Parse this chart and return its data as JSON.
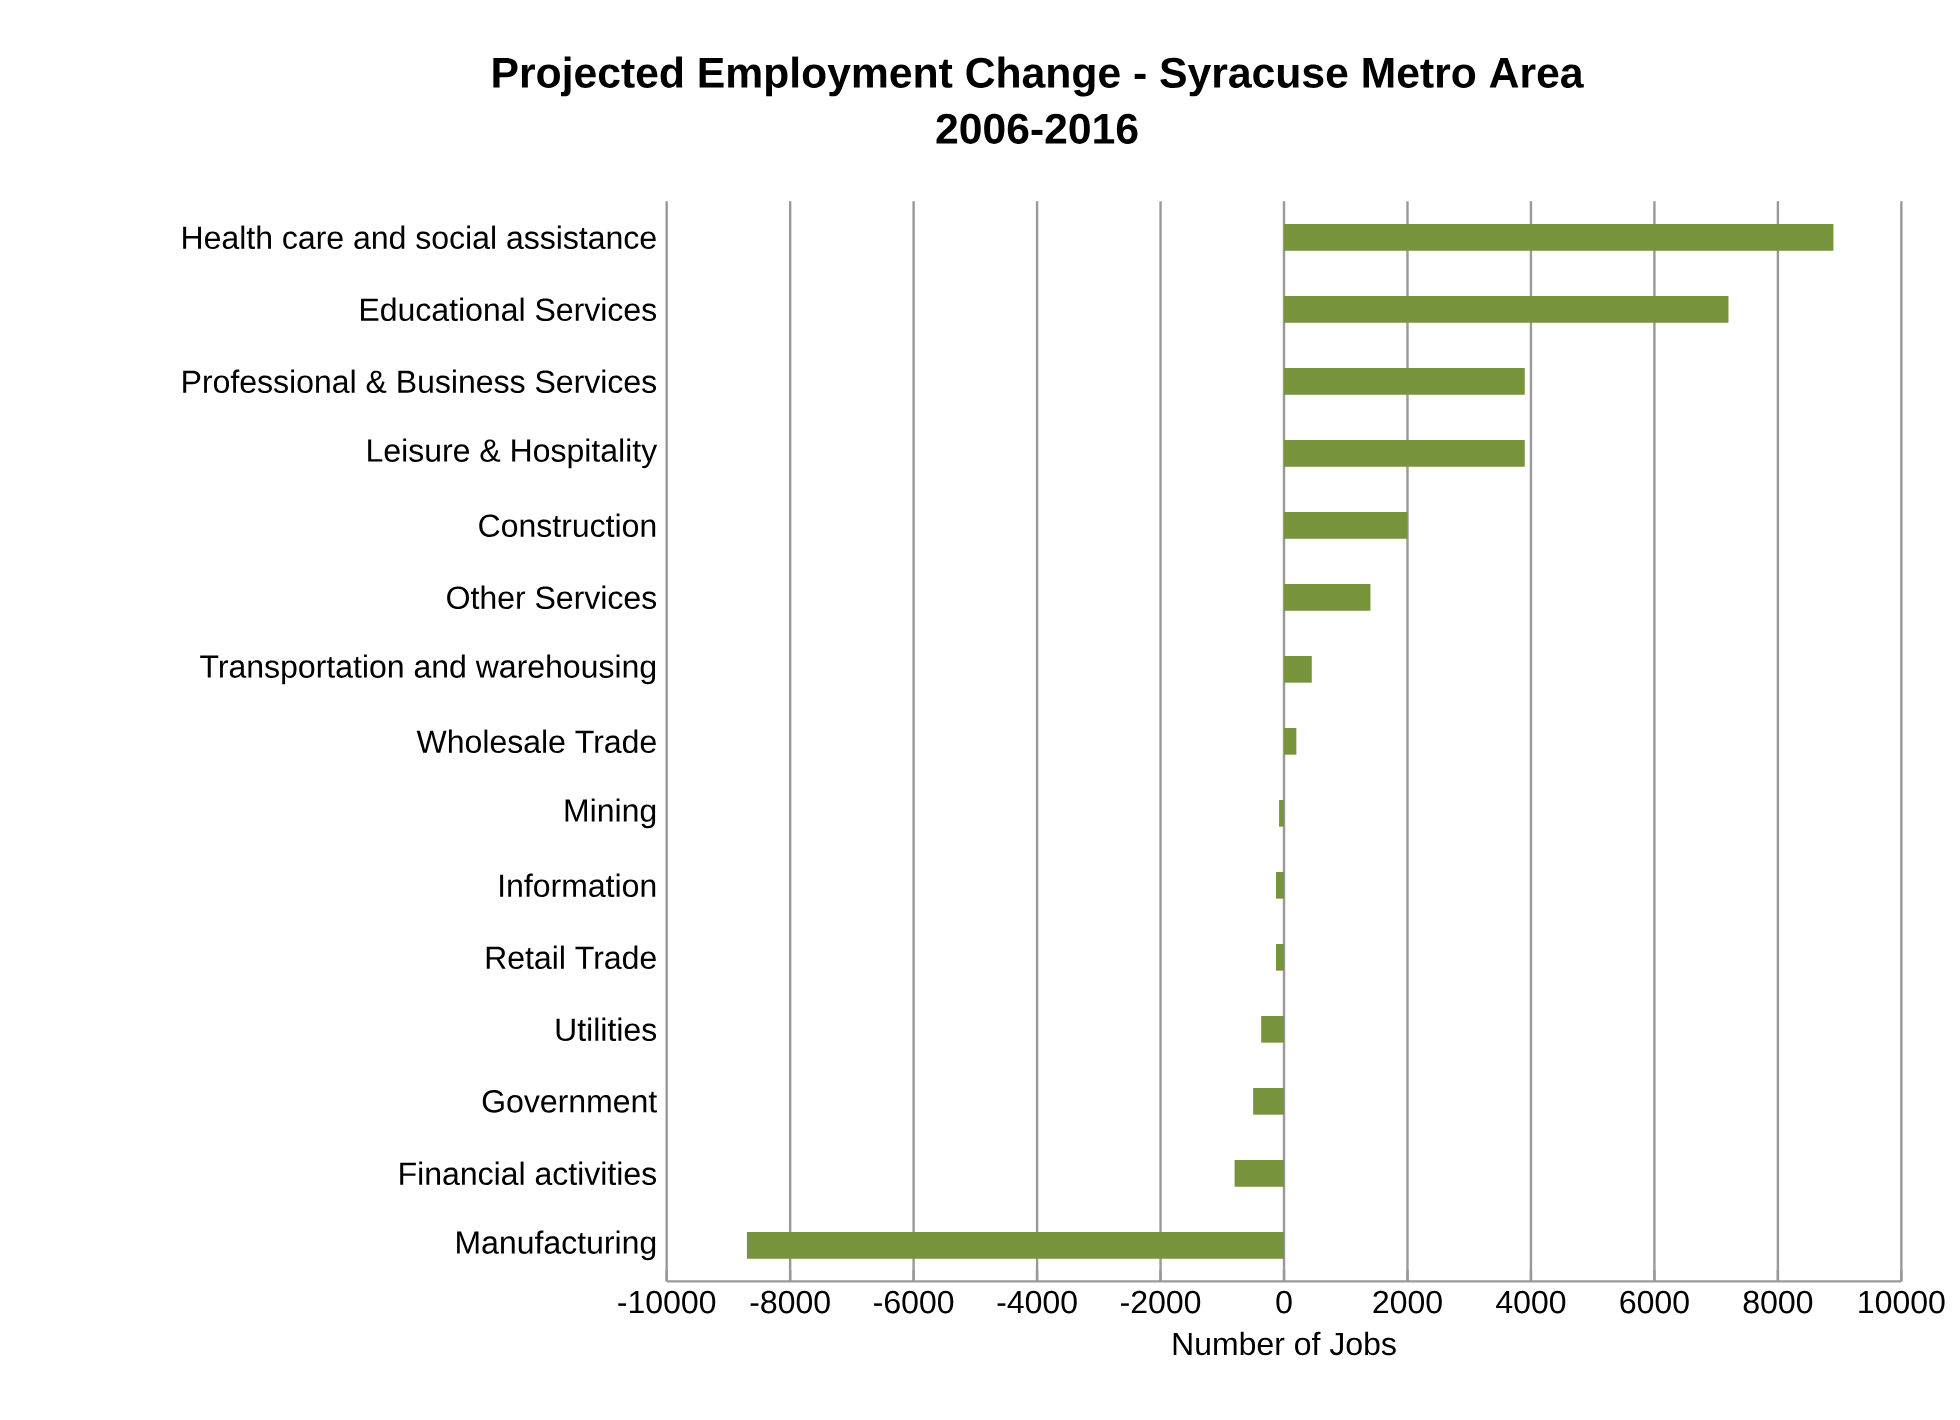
{
  "chart_data": {
    "type": "bar",
    "orientation": "horizontal",
    "title": "Projected Employment Change - Syracuse Metro Area",
    "subtitle": "2006-2016",
    "xlabel": "Number of Jobs",
    "categories": [
      "Health care and social assistance",
      "Educational Services",
      "Professional & Business Services",
      "Leisure & Hospitality",
      "Construction",
      "Other Services",
      "Transportation and  warehousing",
      "Wholesale Trade",
      "Mining",
      "Information",
      "Retail Trade",
      "Utilities",
      "Government",
      "Financial activities",
      "Manufacturing"
    ],
    "values": [
      8900,
      7200,
      3900,
      3900,
      2000,
      1400,
      450,
      200,
      -80,
      -130,
      -130,
      -370,
      -500,
      -800,
      -8700
    ],
    "color": "#77933c",
    "xlim": [
      -10000,
      10000
    ],
    "xticks": [
      -10000,
      -8000,
      -6000,
      -4000,
      -2000,
      0,
      2000,
      4000,
      6000,
      8000,
      10000
    ],
    "grid": "x"
  }
}
